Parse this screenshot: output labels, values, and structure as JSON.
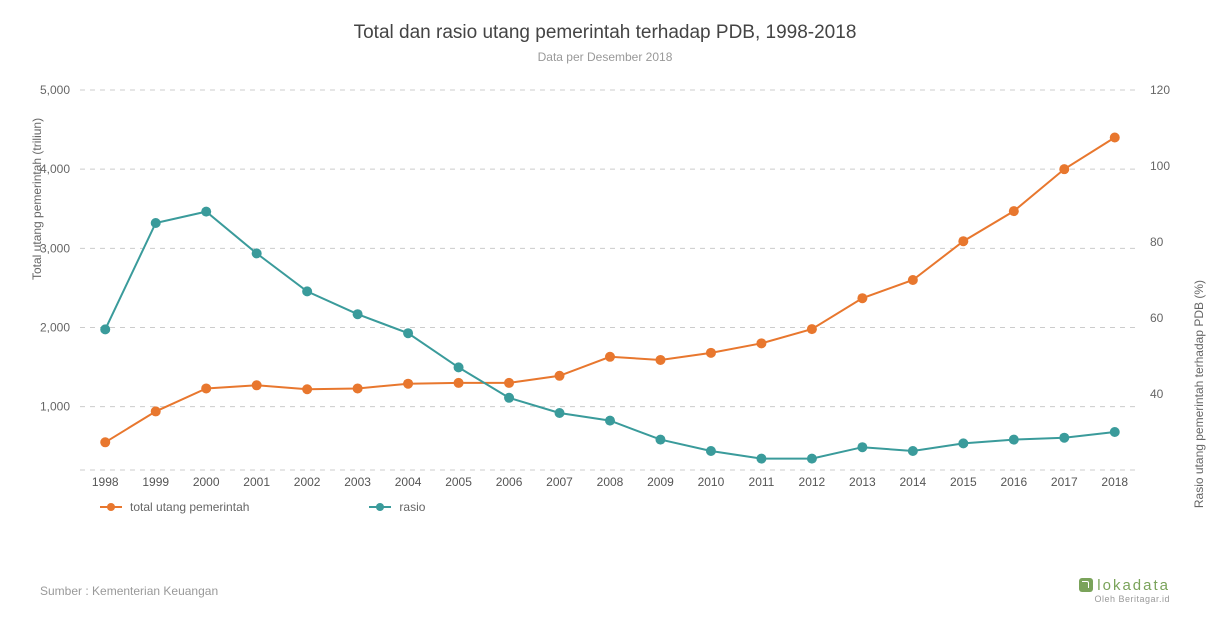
{
  "title": {
    "text": "Total dan rasio utang pemerintah terhadap PDB, 1998-2018",
    "fontsize": 19,
    "color": "#444444"
  },
  "subtitle": {
    "text": "Data per Desember 2018",
    "fontsize": 12,
    "color": "#999999"
  },
  "chart": {
    "type": "line",
    "background_color": "#ffffff",
    "grid_color": "#cccccc",
    "grid_dash": "5 5",
    "categories": [
      "1998",
      "1999",
      "2000",
      "2001",
      "2002",
      "2003",
      "2004",
      "2005",
      "2006",
      "2007",
      "2008",
      "2009",
      "2010",
      "2011",
      "2012",
      "2013",
      "2014",
      "2015",
      "2016",
      "2017",
      "2018"
    ],
    "y_left": {
      "label": "Total utang pemerintah (triliun)",
      "min": 200,
      "max": 5000,
      "ticks": [
        1000,
        2000,
        3000,
        4000,
        5000
      ],
      "tick_fontsize": 12,
      "label_fontsize": 12,
      "label_color": "#666666"
    },
    "y_right": {
      "label": "Rasio utang pemerintah terhadap PDB (%)",
      "min": 20,
      "max": 120,
      "ticks": [
        40,
        60,
        80,
        100,
        120
      ],
      "tick_fontsize": 12,
      "label_fontsize": 12,
      "label_color": "#666666"
    },
    "series": [
      {
        "name": "total utang pemerintah",
        "axis": "left",
        "color": "#e8772e",
        "line_width": 2,
        "marker": "circle",
        "marker_size": 5,
        "values": [
          550,
          940,
          1230,
          1270,
          1220,
          1230,
          1290,
          1300,
          1300,
          1390,
          1630,
          1590,
          1680,
          1800,
          1980,
          2370,
          2600,
          3090,
          3470,
          4000,
          4400
        ]
      },
      {
        "name": "rasio",
        "axis": "right",
        "color": "#3a9b9b",
        "line_width": 2,
        "marker": "circle",
        "marker_size": 5,
        "values": [
          57,
          85,
          88,
          77,
          67,
          61,
          56,
          47,
          39,
          35,
          33,
          28,
          25,
          23,
          23,
          26,
          25,
          27,
          28,
          28.5,
          30
        ]
      }
    ],
    "legend": {
      "items": [
        {
          "label": "total utang pemerintah",
          "color": "#e8772e"
        },
        {
          "label": "rasio",
          "color": "#3a9b9b"
        }
      ],
      "fontsize": 12,
      "color": "#666666"
    }
  },
  "source": {
    "text": "Sumber : Kementerian Keuangan",
    "fontsize": 12,
    "color": "#999999"
  },
  "brand": {
    "name": "lokadata",
    "sub": "Oleh Beritagar.id",
    "color": "#7aa35a"
  }
}
